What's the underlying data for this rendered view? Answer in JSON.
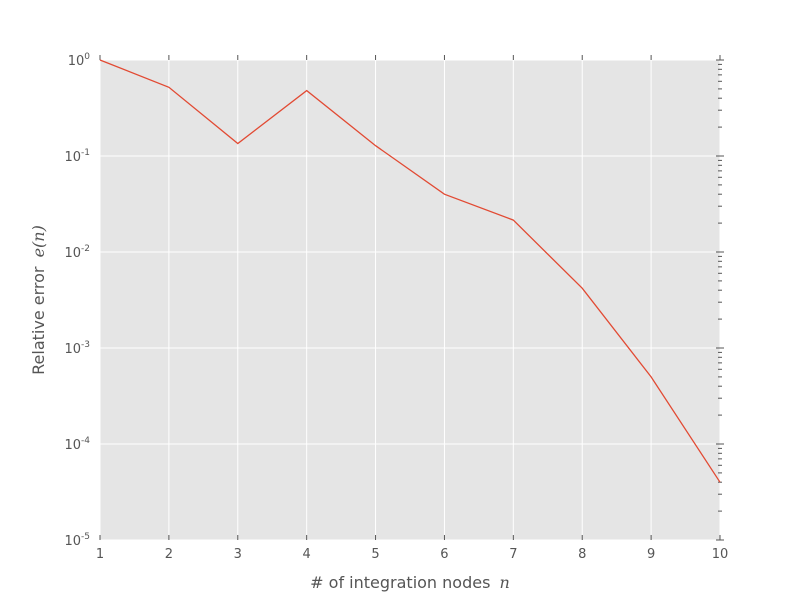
{
  "chart_data": {
    "type": "line",
    "title": "",
    "xlabel": "# of integration nodes",
    "xlabel_var": "n",
    "ylabel": "Relative error",
    "ylabel_var": "e(n)",
    "x": [
      1,
      2,
      3,
      4,
      5,
      6,
      7,
      8,
      9,
      10
    ],
    "series": [
      {
        "values": [
          1.0,
          0.52,
          0.135,
          0.48,
          0.128,
          0.04,
          0.0215,
          0.0042,
          0.0005,
          4e-05
        ],
        "color": "#e24a33"
      }
    ],
    "xlim": [
      1,
      10
    ],
    "ylim": [
      1e-05,
      1
    ],
    "yscale": "log",
    "grid": true,
    "legend": "none",
    "x_ticks": [
      "1",
      "2",
      "3",
      "4",
      "5",
      "6",
      "7",
      "8",
      "9",
      "10"
    ],
    "y_ticks": [
      {
        "base": "10",
        "exp": "0"
      },
      {
        "base": "10",
        "exp": "-1"
      },
      {
        "base": "10",
        "exp": "-2"
      },
      {
        "base": "10",
        "exp": "-3"
      },
      {
        "base": "10",
        "exp": "-4"
      },
      {
        "base": "10",
        "exp": "-5"
      }
    ],
    "colors": {
      "background": "#e5e5e5",
      "grid": "#ffffff",
      "line": "#e24a33",
      "text": "#555555"
    }
  }
}
